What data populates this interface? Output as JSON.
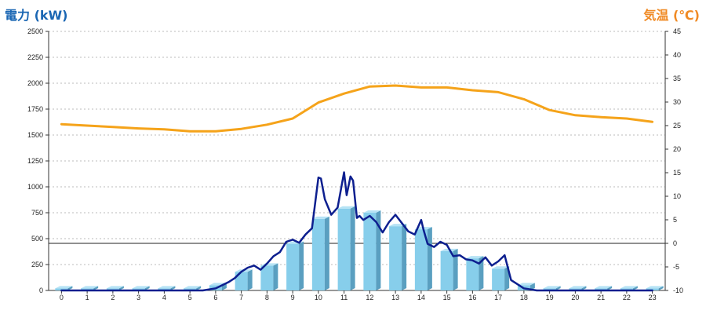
{
  "units": {
    "left": "電力 (kW)",
    "right": "気温 (℃)"
  },
  "colors": {
    "bar": "#87ceeb",
    "bar_side": "#5a9fc0",
    "bar_top": "#b6e3f5",
    "power_line": "#0d1f8f",
    "temp_line": "#f5a31a",
    "grid": "#bbbbbb"
  },
  "chart_data": {
    "type": "bar",
    "title": "",
    "xlabel": "",
    "ylabel": "電力 (kW)",
    "y2label": "気温 (℃)",
    "categories": [
      "0",
      "1",
      "2",
      "3",
      "4",
      "5",
      "6",
      "7",
      "8",
      "9",
      "10",
      "11",
      "12",
      "13",
      "14",
      "15",
      "16",
      "17",
      "18",
      "19",
      "20",
      "21",
      "22",
      "23"
    ],
    "ylim": [
      0,
      2500
    ],
    "y_ticks": [
      0,
      250,
      500,
      750,
      1000,
      1250,
      1500,
      1750,
      2000,
      2250,
      2500
    ],
    "y2lim": [
      -10,
      45
    ],
    "y2_ticks": [
      -10,
      -5,
      0,
      5,
      10,
      15,
      20,
      25,
      30,
      35,
      40,
      45
    ],
    "grid": true,
    "series": [
      {
        "type": "bar",
        "axis": "left",
        "values": [
          20,
          20,
          20,
          20,
          20,
          20,
          50,
          180,
          240,
          450,
          690,
          790,
          750,
          620,
          590,
          380,
          310,
          210,
          50,
          20,
          20,
          20,
          20,
          20
        ]
      },
      {
        "type": "line",
        "axis": "left",
        "x": [
          0,
          1,
          2,
          3,
          4,
          5,
          5.5,
          6,
          6.5,
          6.75,
          7,
          7.25,
          7.5,
          7.75,
          8,
          8.25,
          8.5,
          8.75,
          9,
          9.25,
          9.5,
          9.75,
          10,
          10.1,
          10.25,
          10.5,
          10.75,
          11,
          11.1,
          11.25,
          11.35,
          11.5,
          11.6,
          11.75,
          12,
          12.25,
          12.5,
          12.75,
          13,
          13.25,
          13.5,
          13.75,
          14,
          14.1,
          14.25,
          14.5,
          14.75,
          15,
          15.25,
          15.5,
          15.75,
          16,
          16.25,
          16.5,
          16.75,
          17,
          17.25,
          17.5,
          17.75,
          18,
          18.5,
          19,
          20,
          21,
          22,
          23
        ],
        "values": [
          0,
          0,
          0,
          0,
          0,
          0,
          0,
          20,
          80,
          120,
          180,
          220,
          240,
          200,
          260,
          330,
          370,
          470,
          490,
          460,
          540,
          600,
          1090,
          1080,
          880,
          730,
          800,
          1140,
          920,
          1100,
          1060,
          700,
          720,
          680,
          720,
          660,
          560,
          660,
          730,
          650,
          570,
          540,
          680,
          580,
          450,
          420,
          470,
          440,
          330,
          340,
          300,
          290,
          260,
          320,
          240,
          280,
          340,
          100,
          60,
          20,
          0,
          0,
          0,
          0,
          0,
          0
        ]
      },
      {
        "type": "line",
        "axis": "right",
        "x": [
          0,
          1,
          2,
          3,
          4,
          5,
          6,
          7,
          8,
          9,
          10,
          11,
          12,
          13,
          14,
          15,
          16,
          17,
          18,
          19,
          20,
          21,
          22,
          23
        ],
        "values": [
          25.3,
          25.0,
          24.7,
          24.4,
          24.2,
          23.8,
          23.8,
          24.3,
          25.2,
          26.5,
          29.9,
          31.8,
          33.3,
          33.5,
          33.1,
          33.1,
          32.5,
          32.1,
          30.6,
          28.3,
          27.2,
          26.8,
          26.5,
          25.8
        ]
      }
    ]
  }
}
